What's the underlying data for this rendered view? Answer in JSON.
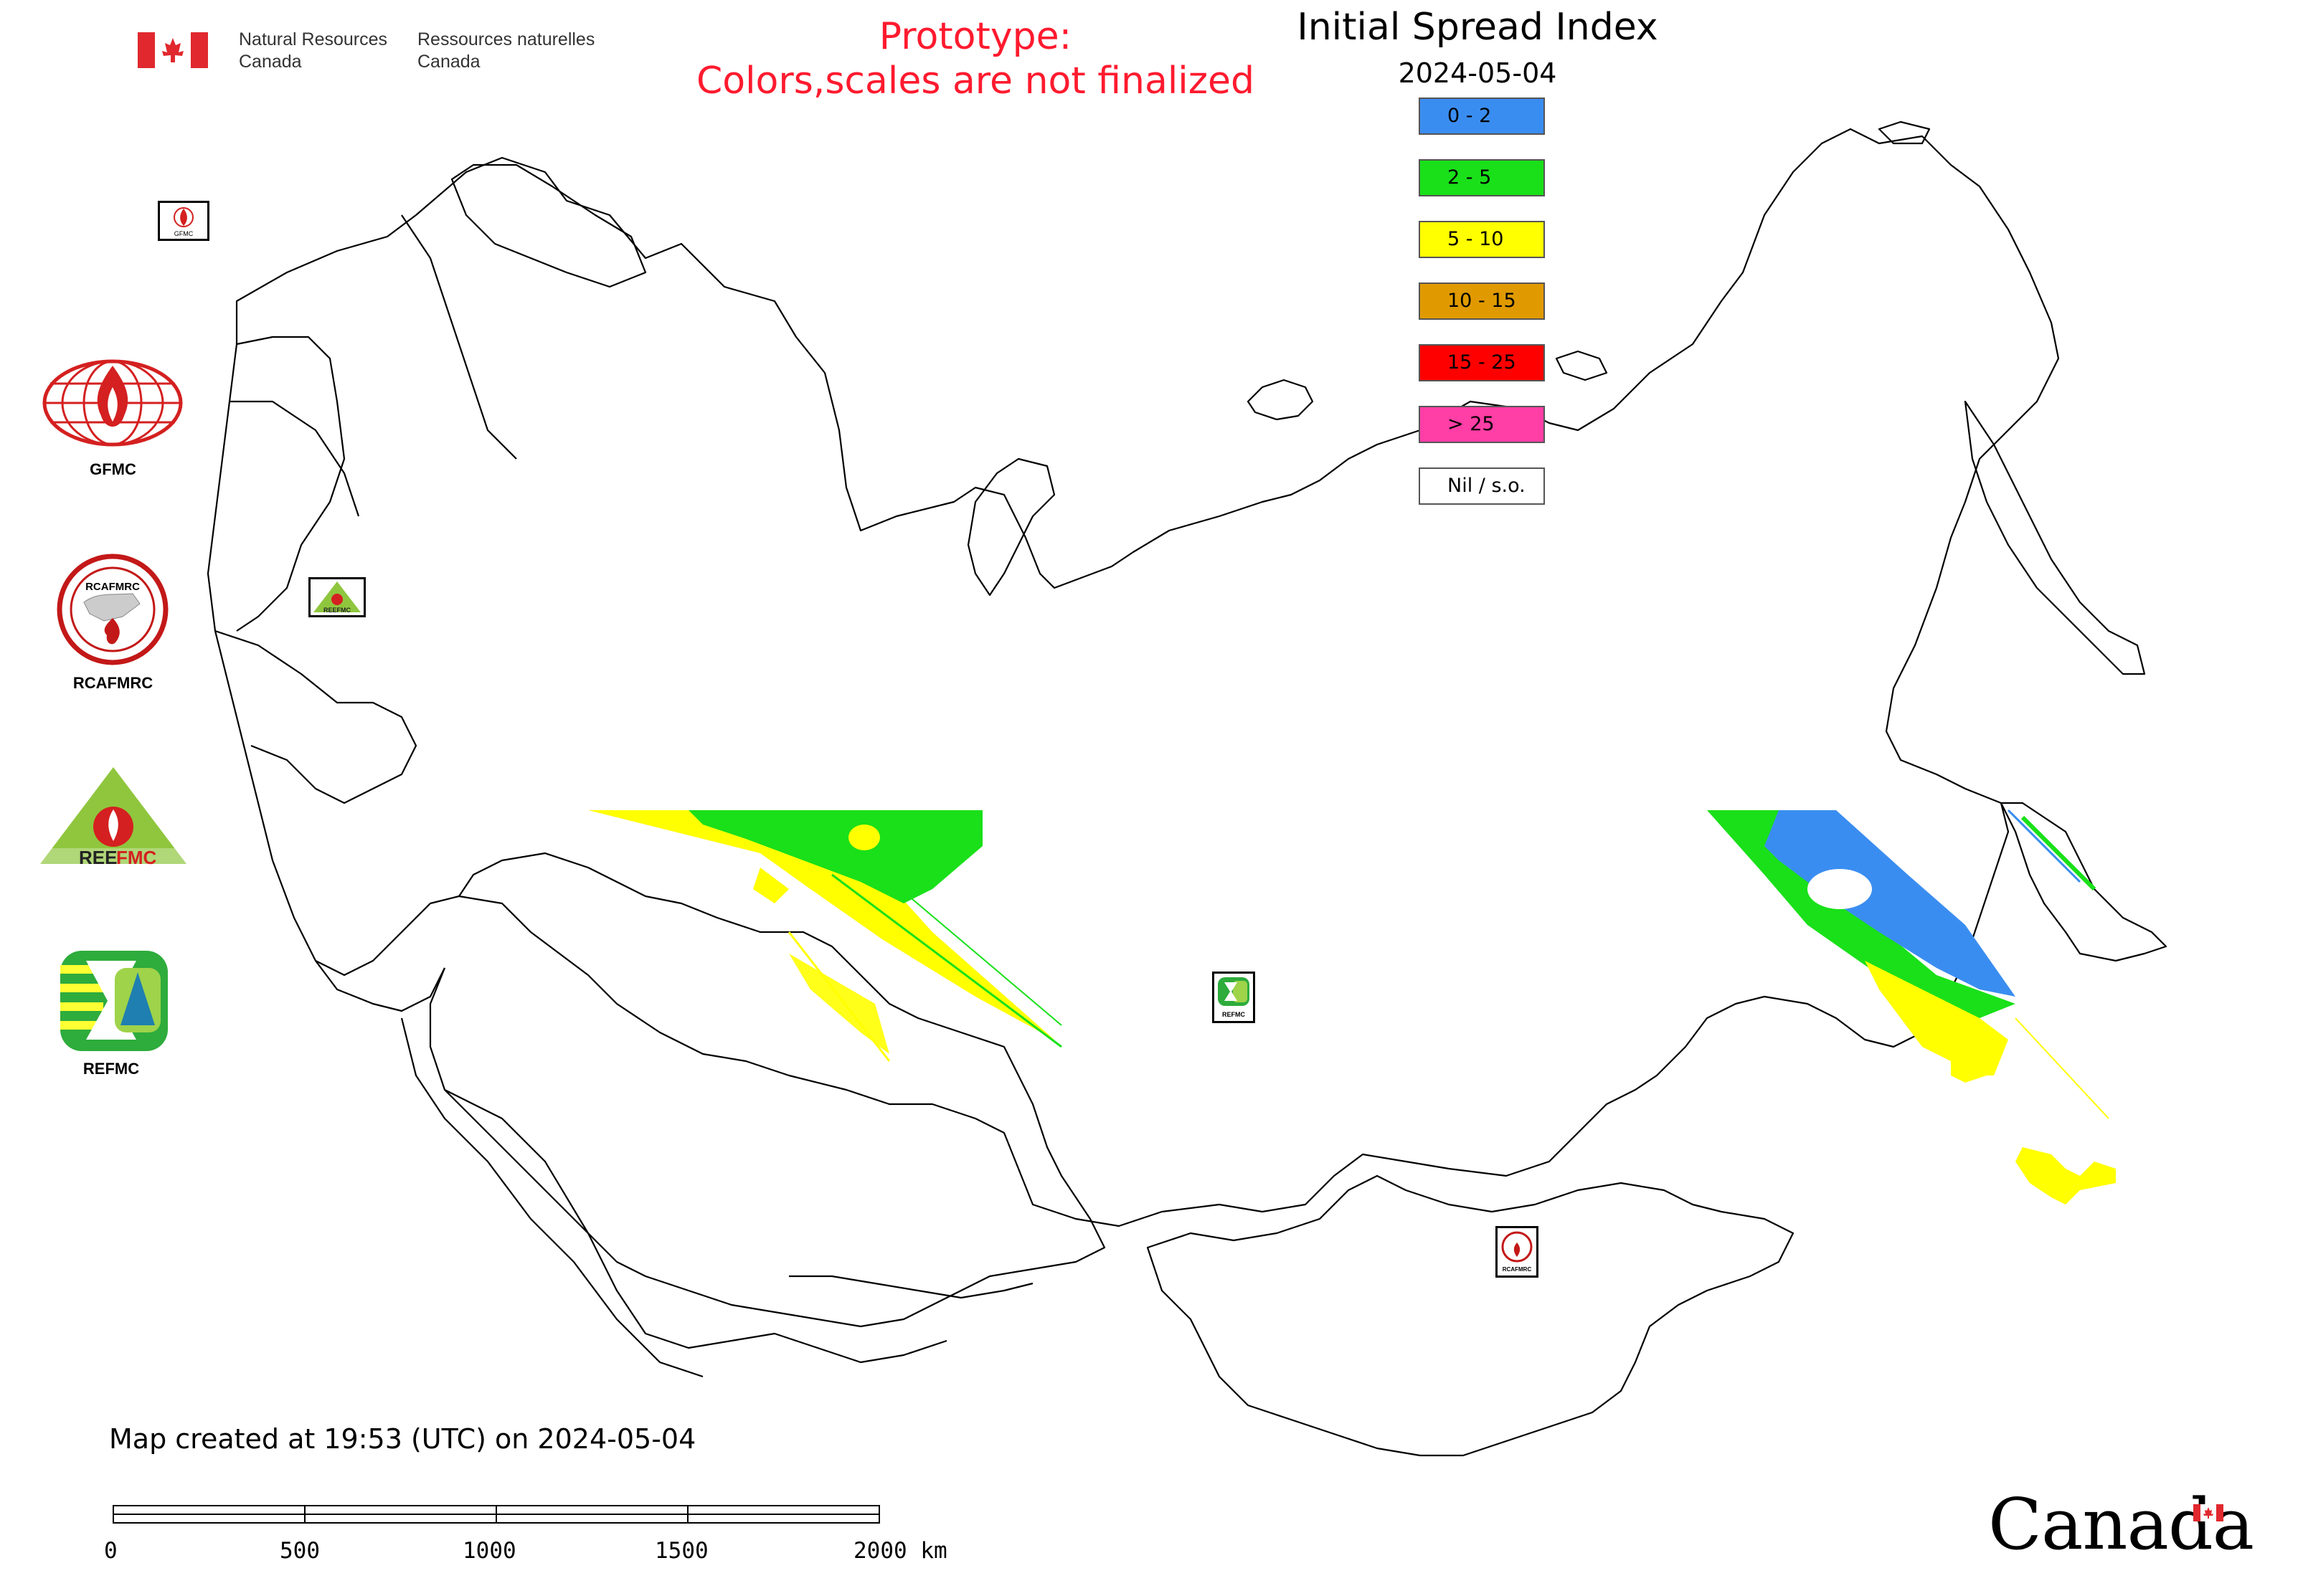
{
  "header": {
    "org_en_line1": "Natural Resources",
    "org_en_line2": "Canada",
    "org_fr_line1": "Ressources naturelles",
    "org_fr_line2": "Canada"
  },
  "prototype_notice": {
    "line1": "Prototype:",
    "line2": "Colors,scales are not finalized"
  },
  "map": {
    "title": "Initial Spread Index",
    "date": "2024-05-04"
  },
  "legend": [
    {
      "label": "0 - 2",
      "color": "#3a8df0"
    },
    {
      "label": "2 - 5",
      "color": "#19e019"
    },
    {
      "label": "5 - 10",
      "color": "#ffff00"
    },
    {
      "label": "10 - 15",
      "color": "#e09a00"
    },
    {
      "label": "15 - 25",
      "color": "#ff0000"
    },
    {
      "label": "> 25",
      "color": "#ff3ea6"
    },
    {
      "label": "Nil / s.o.",
      "color": "#ffffff"
    }
  ],
  "logos": [
    {
      "label": "GFMC",
      "icon": "gfmc-logo-icon"
    },
    {
      "label": "RCAFMRC",
      "icon": "rcafmrc-logo-icon"
    },
    {
      "label": "REEFMC",
      "icon": "reefmc-logo-icon"
    },
    {
      "label": "REFMC",
      "icon": "refmc-logo-icon"
    }
  ],
  "map_logos": [
    {
      "label": "GFMC"
    },
    {
      "label": "REEFMC"
    },
    {
      "label": "REFMC"
    },
    {
      "label": "RCAFMRC"
    }
  ],
  "footer": {
    "created_text": "Map created at 19:53 (UTC) on 2024-05-04",
    "scale_ticks": [
      "0",
      "500",
      "1000",
      "1500",
      "2000 km"
    ],
    "wordmark": "Canada"
  }
}
